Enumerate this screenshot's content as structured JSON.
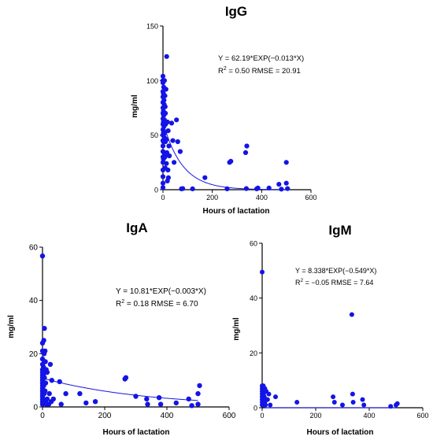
{
  "chart_data": [
    {
      "type": "scatter",
      "title": "IgG",
      "xlabel": "Hours of lactation",
      "ylabel": "mg/ml",
      "xlim": [
        0,
        600
      ],
      "ylim": [
        0,
        150
      ],
      "xticks": [
        0,
        200,
        400,
        600
      ],
      "yticks": [
        0,
        50,
        100,
        150
      ],
      "grid": false,
      "point_color": "#1414e6",
      "fit": {
        "a": 62.19,
        "b": -0.013,
        "color": "#1414e6"
      },
      "annotation": {
        "line1": "Y = 62.19*EXP(−0.013*X)",
        "r2_label": "R",
        "r2_rest": " = 0.50  RMSE = 20.91"
      },
      "points": [
        [
          0,
          2
        ],
        [
          0,
          6
        ],
        [
          0,
          12
        ],
        [
          0,
          18
        ],
        [
          0,
          25
        ],
        [
          0,
          30
        ],
        [
          0,
          35
        ],
        [
          0,
          40
        ],
        [
          0,
          45
        ],
        [
          0,
          50
        ],
        [
          0,
          55
        ],
        [
          0,
          60
        ],
        [
          0,
          65
        ],
        [
          0,
          70
        ],
        [
          0,
          75
        ],
        [
          0,
          80
        ],
        [
          0,
          85
        ],
        [
          0,
          90
        ],
        [
          0,
          98
        ],
        [
          0,
          100
        ],
        [
          0,
          104
        ],
        [
          2,
          28
        ],
        [
          2,
          44
        ],
        [
          2,
          52
        ],
        [
          2,
          62
        ],
        [
          2,
          72
        ],
        [
          2,
          88
        ],
        [
          3,
          68
        ],
        [
          3,
          94
        ],
        [
          4,
          34
        ],
        [
          4,
          58
        ],
        [
          4,
          82
        ],
        [
          5,
          48
        ],
        [
          5,
          78
        ],
        [
          6,
          64
        ],
        [
          6,
          100
        ],
        [
          7,
          52
        ],
        [
          8,
          30
        ],
        [
          8,
          86
        ],
        [
          9,
          20
        ],
        [
          9,
          76
        ],
        [
          10,
          44
        ],
        [
          10,
          70
        ],
        [
          11,
          60
        ],
        [
          12,
          92
        ],
        [
          12,
          33
        ],
        [
          14,
          24
        ],
        [
          14,
          46
        ],
        [
          15,
          122
        ],
        [
          16,
          34
        ],
        [
          18,
          62
        ],
        [
          18,
          8
        ],
        [
          20,
          18
        ],
        [
          21,
          54
        ],
        [
          22,
          11
        ],
        [
          24,
          40
        ],
        [
          26,
          31
        ],
        [
          35,
          61
        ],
        [
          40,
          45
        ],
        [
          45,
          25
        ],
        [
          55,
          64
        ],
        [
          60,
          44
        ],
        [
          70,
          35
        ],
        [
          75,
          0.8
        ],
        [
          80,
          1
        ],
        [
          120,
          0.8
        ],
        [
          170,
          11
        ],
        [
          260,
          0.8
        ],
        [
          270,
          25
        ],
        [
          275,
          26
        ],
        [
          335,
          34
        ],
        [
          338,
          1
        ],
        [
          340,
          40
        ],
        [
          380,
          0.8
        ],
        [
          385,
          1.5
        ],
        [
          430,
          1.5
        ],
        [
          470,
          5
        ],
        [
          480,
          0.5
        ],
        [
          500,
          6
        ],
        [
          500,
          25
        ],
        [
          505,
          1
        ]
      ]
    },
    {
      "type": "scatter",
      "title": "IgA",
      "xlabel": "Hours of lactation",
      "ylabel": "mg/ml",
      "xlim": [
        0,
        600
      ],
      "ylim": [
        0,
        60
      ],
      "xticks": [
        0,
        200,
        400,
        600
      ],
      "yticks": [
        0,
        20,
        40,
        60
      ],
      "grid": false,
      "point_color": "#1414e6",
      "fit": {
        "a": 10.81,
        "b": -0.003,
        "color": "#1414e6"
      },
      "annotation": {
        "line1": "Y = 10.81*EXP(−0.003*X)",
        "r2_label": "R",
        "r2_rest": " = 0.18  RMSE = 6.70"
      },
      "points": [
        [
          0,
          56.7
        ],
        [
          0,
          1
        ],
        [
          0,
          2
        ],
        [
          0,
          3
        ],
        [
          0,
          4
        ],
        [
          0,
          5
        ],
        [
          0,
          6
        ],
        [
          0,
          7
        ],
        [
          0,
          8
        ],
        [
          0,
          9
        ],
        [
          0,
          10
        ],
        [
          0,
          11
        ],
        [
          0,
          12
        ],
        [
          0,
          13
        ],
        [
          0,
          14
        ],
        [
          0,
          16
        ],
        [
          0,
          18
        ],
        [
          0,
          21
        ],
        [
          0,
          24
        ],
        [
          2,
          3
        ],
        [
          2,
          6
        ],
        [
          2,
          9
        ],
        [
          3,
          12
        ],
        [
          3,
          15
        ],
        [
          4,
          8
        ],
        [
          4,
          25
        ],
        [
          5,
          5
        ],
        [
          5,
          20
        ],
        [
          6,
          11
        ],
        [
          6,
          29.5
        ],
        [
          7,
          2
        ],
        [
          8,
          21
        ],
        [
          8,
          6
        ],
        [
          9,
          17
        ],
        [
          10,
          2
        ],
        [
          10,
          9
        ],
        [
          12,
          14
        ],
        [
          12,
          1
        ],
        [
          15,
          3
        ],
        [
          15,
          13
        ],
        [
          20,
          1
        ],
        [
          22,
          5
        ],
        [
          25,
          16
        ],
        [
          28,
          2
        ],
        [
          30,
          10
        ],
        [
          35,
          3
        ],
        [
          55,
          9.5
        ],
        [
          60,
          1
        ],
        [
          75,
          5
        ],
        [
          120,
          5
        ],
        [
          140,
          1.5
        ],
        [
          170,
          2
        ],
        [
          265,
          10.5
        ],
        [
          268,
          11
        ],
        [
          300,
          4
        ],
        [
          335,
          3
        ],
        [
          338,
          1
        ],
        [
          375,
          3.5
        ],
        [
          380,
          1
        ],
        [
          430,
          1.5
        ],
        [
          470,
          3
        ],
        [
          480,
          0.5
        ],
        [
          500,
          1
        ],
        [
          500,
          5
        ],
        [
          505,
          8
        ]
      ]
    },
    {
      "type": "scatter",
      "title": "IgM",
      "xlabel": "Hours of lactation",
      "ylabel": "mg/ml",
      "xlim": [
        0,
        600
      ],
      "ylim": [
        0,
        60
      ],
      "xticks": [
        0,
        200,
        400,
        600
      ],
      "yticks": [
        0,
        20,
        40,
        60
      ],
      "grid": false,
      "point_color": "#1414e6",
      "fit": {
        "a": 8.338,
        "b": -0.549,
        "color": "#1414e6"
      },
      "annotation": {
        "line1": "Y = 8.338*EXP(−0.549*X)",
        "r2_label": "R",
        "r2_rest": " = −0.05  RMSE = 7.64"
      },
      "points": [
        [
          0,
          49.5
        ],
        [
          0,
          1
        ],
        [
          0,
          2
        ],
        [
          0,
          3
        ],
        [
          0,
          4
        ],
        [
          0,
          5
        ],
        [
          0,
          6
        ],
        [
          0,
          7
        ],
        [
          0,
          8
        ],
        [
          2,
          2
        ],
        [
          2,
          6
        ],
        [
          3,
          3
        ],
        [
          4,
          8
        ],
        [
          5,
          5
        ],
        [
          6,
          1
        ],
        [
          6,
          7
        ],
        [
          8,
          4
        ],
        [
          10,
          2
        ],
        [
          10,
          7
        ],
        [
          12,
          1
        ],
        [
          14,
          3
        ],
        [
          15,
          6
        ],
        [
          20,
          3
        ],
        [
          25,
          5
        ],
        [
          30,
          1
        ],
        [
          50,
          4
        ],
        [
          130,
          2
        ],
        [
          265,
          4
        ],
        [
          270,
          2
        ],
        [
          300,
          1
        ],
        [
          335,
          34
        ],
        [
          338,
          5
        ],
        [
          340,
          2
        ],
        [
          375,
          3
        ],
        [
          380,
          1
        ],
        [
          480,
          0.5
        ],
        [
          500,
          1
        ],
        [
          505,
          1.5
        ]
      ]
    }
  ]
}
